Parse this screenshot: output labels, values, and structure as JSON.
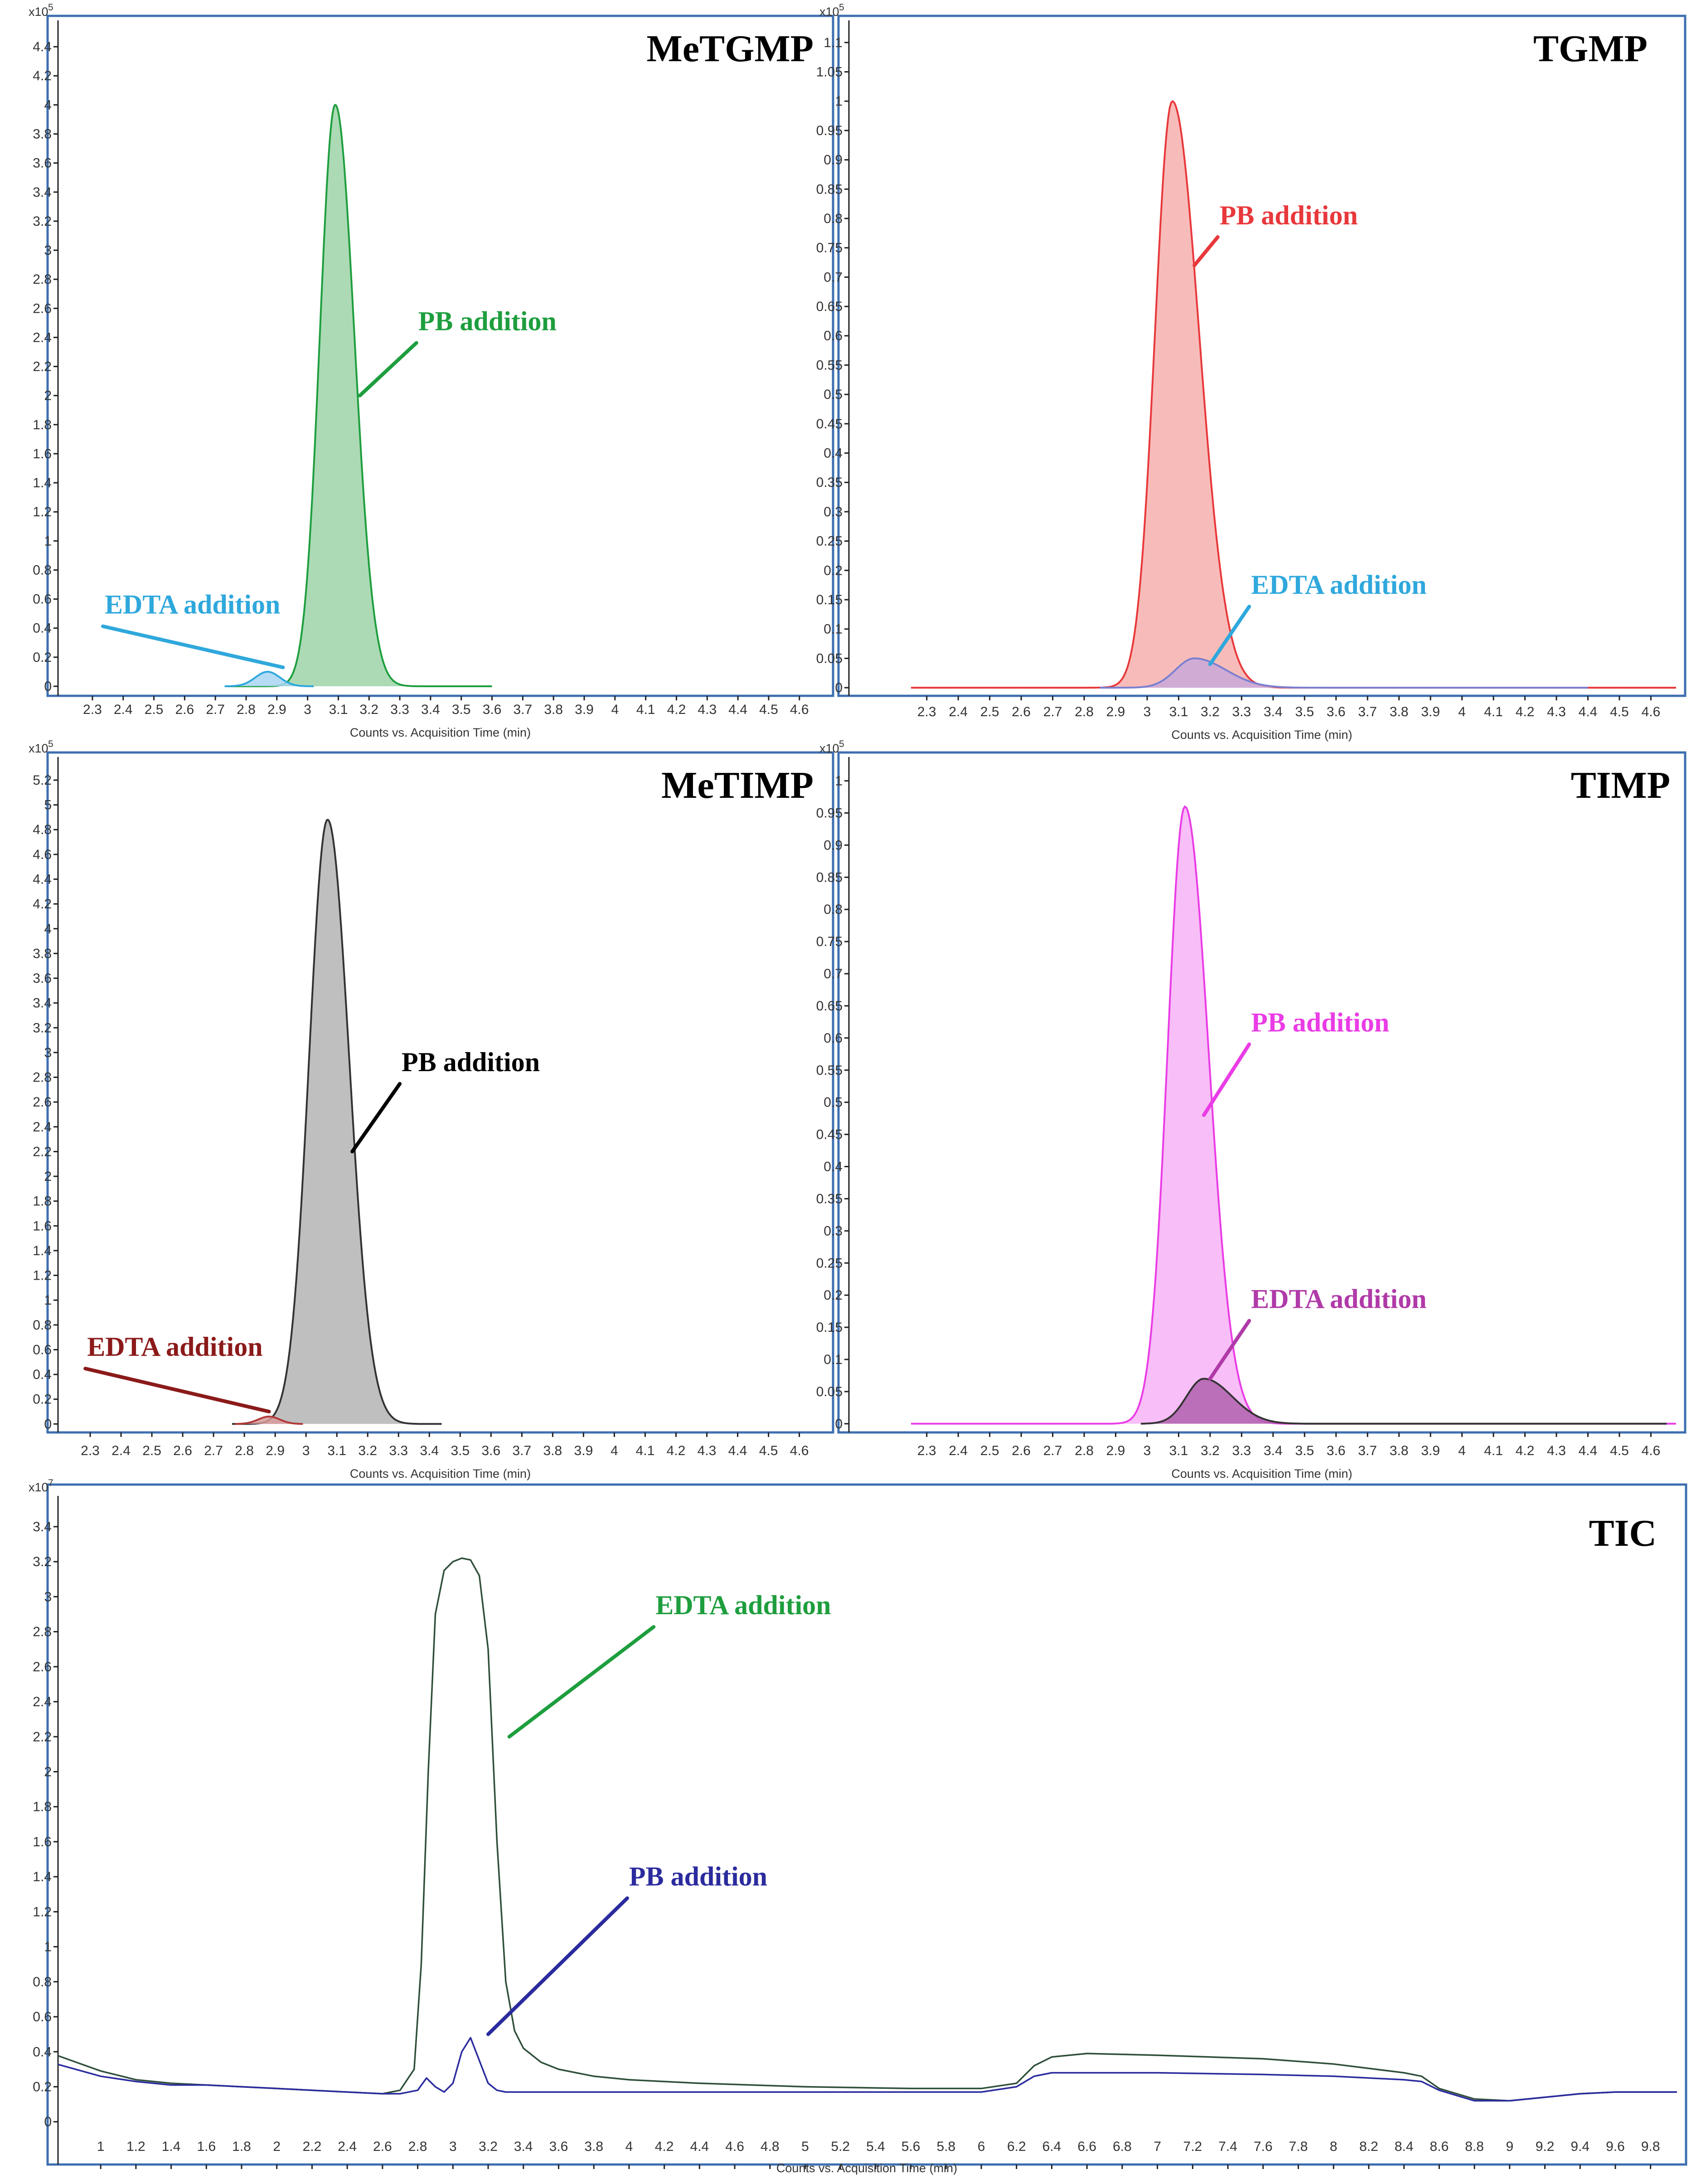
{
  "figure": {
    "xlabel": "Counts vs. Acquisition Time (min)",
    "colors": {
      "frame": "#3d6fb0",
      "axis": "#222222",
      "tick_text": "#333333",
      "title_text": "#000000"
    }
  },
  "chart_data": [
    {
      "id": "metgmp",
      "type": "area",
      "title": "MeTGMP",
      "xlabel": "Counts vs. Acquisition Time (min)",
      "exponent_base": "x10",
      "exponent": "5",
      "xlim": [
        2.25,
        4.68
      ],
      "ylim": [
        -0.05,
        4.55
      ],
      "x_ticks": [
        2.3,
        2.4,
        2.5,
        2.6,
        2.7,
        2.8,
        2.9,
        3,
        3.1,
        3.2,
        3.3,
        3.4,
        3.5,
        3.6,
        3.7,
        3.8,
        3.9,
        4,
        4.1,
        4.2,
        4.3,
        4.4,
        4.5,
        4.6
      ],
      "x_tick_labels": [
        "2.3",
        "2.4",
        "2.5",
        "2.6",
        "2.7",
        "2.8",
        "2.9",
        "3",
        "3.1",
        "3.2",
        "3.3",
        "3.4",
        "3.5",
        "3.6",
        "3.7",
        "3.8",
        "3.9",
        "4",
        "4.1",
        "4.2",
        "4.3",
        "4.4",
        "4.5",
        "4.6"
      ],
      "y_ticks": [
        0,
        0.2,
        0.4,
        0.6,
        0.8,
        1,
        1.2,
        1.4,
        1.6,
        1.8,
        2,
        2.2,
        2.4,
        2.6,
        2.8,
        3,
        3.2,
        3.4,
        3.6,
        3.8,
        4,
        4.2,
        4.4
      ],
      "y_tick_labels": [
        "0",
        "0.2",
        "0.4",
        "0.6",
        "0.8",
        "1",
        "1.2",
        "1.4",
        "1.6",
        "1.8",
        "2",
        "2.2",
        "2.4",
        "2.6",
        "2.8",
        "3",
        "3.2",
        "3.4",
        "3.6",
        "3.8",
        "4",
        "4.2",
        "4.4"
      ],
      "series": [
        {
          "name": "PB addition",
          "label": "PB addition",
          "color": "#1e9e3e",
          "fill": "#9ed4a8",
          "x_range": [
            2.73,
            3.6
          ],
          "peak_x": 3.09,
          "peak_y": 4.0,
          "sigma_left": 0.05,
          "sigma_right": 0.062,
          "baseline": 0.0
        },
        {
          "name": "EDTA addition",
          "label": "EDTA addition",
          "color": "#2fa8dc",
          "fill": "#a8d6f2",
          "x_range": [
            2.73,
            3.02
          ],
          "peak_x": 2.87,
          "peak_y": 0.1,
          "sigma_left": 0.04,
          "sigma_right": 0.04,
          "baseline": 0.0
        }
      ],
      "annotations": [
        {
          "text": "PB addition",
          "series": "PB addition",
          "color": "#1e9e3e",
          "label_at": [
            3.36,
            2.45
          ],
          "arrow_to": [
            3.17,
            2.0
          ]
        },
        {
          "text": "EDTA addition",
          "series": "EDTA addition",
          "color": "#2fa8dc",
          "label_at": [
            2.34,
            0.5
          ],
          "arrow_to": [
            2.92,
            0.13
          ]
        }
      ]
    },
    {
      "id": "tgmp",
      "type": "area",
      "title": "TGMP",
      "xlabel": "Counts vs. Acquisition Time (min)",
      "exponent_base": "x10",
      "exponent": "5",
      "xlim": [
        2.25,
        4.68
      ],
      "ylim": [
        -0.01,
        1.13
      ],
      "x_ticks": [
        2.3,
        2.4,
        2.5,
        2.6,
        2.7,
        2.8,
        2.9,
        3,
        3.1,
        3.2,
        3.3,
        3.4,
        3.5,
        3.6,
        3.7,
        3.8,
        3.9,
        4,
        4.1,
        4.2,
        4.3,
        4.4,
        4.5,
        4.6
      ],
      "x_tick_labels": [
        "2.3",
        "2.4",
        "2.5",
        "2.6",
        "2.7",
        "2.8",
        "2.9",
        "3",
        "3.1",
        "3.2",
        "3.3",
        "3.4",
        "3.5",
        "3.6",
        "3.7",
        "3.8",
        "3.9",
        "4",
        "4.1",
        "4.2",
        "4.3",
        "4.4",
        "4.5",
        "4.6"
      ],
      "y_ticks": [
        0,
        0.05,
        0.1,
        0.15,
        0.2,
        0.25,
        0.3,
        0.35,
        0.4,
        0.45,
        0.5,
        0.55,
        0.6,
        0.65,
        0.7,
        0.75,
        0.8,
        0.85,
        0.9,
        0.95,
        1,
        1.05,
        1.1
      ],
      "y_tick_labels": [
        "0",
        "0.05",
        "0.1",
        "0.15",
        "0.2",
        "0.25",
        "0.3",
        "0.35",
        "0.4",
        "0.45",
        "0.5",
        "0.55",
        "0.6",
        "0.65",
        "0.7",
        "0.75",
        "0.8",
        "0.85",
        "0.9",
        "0.95",
        "1",
        "1.05",
        "1.1"
      ],
      "series": [
        {
          "name": "PB addition",
          "label": "PB addition",
          "color": "#e8383b",
          "fill": "#f6b0ae",
          "x_range": [
            2.25,
            4.68
          ],
          "peak_x": 3.08,
          "peak_y": 1.0,
          "sigma_left": 0.055,
          "sigma_right": 0.085,
          "baseline": 0.0
        },
        {
          "name": "EDTA addition",
          "label": "EDTA addition",
          "color": "#7a7fd0",
          "fill": "#c9a9d9",
          "x_range": [
            2.85,
            4.4
          ],
          "peak_x": 3.15,
          "peak_y": 0.05,
          "sigma_left": 0.06,
          "sigma_right": 0.1,
          "baseline": 0.0
        }
      ],
      "annotations": [
        {
          "text": "PB addition",
          "series": "PB addition",
          "color": "#e8383b",
          "label_at": [
            3.23,
            0.79
          ],
          "arrow_to": [
            3.15,
            0.72
          ]
        },
        {
          "text": "EDTA addition",
          "series": "EDTA addition",
          "color": "#2fa8dc",
          "label_at": [
            3.33,
            0.16
          ],
          "arrow_to": [
            3.2,
            0.04
          ]
        }
      ]
    },
    {
      "id": "metimp",
      "type": "area",
      "title": "MeTIMP",
      "xlabel": "Counts vs. Acquisition Time (min)",
      "exponent_base": "x10",
      "exponent": "5",
      "xlim": [
        2.25,
        4.68
      ],
      "ylim": [
        -0.05,
        5.35
      ],
      "x_ticks": [
        2.3,
        2.4,
        2.5,
        2.6,
        2.7,
        2.8,
        2.9,
        3,
        3.1,
        3.2,
        3.3,
        3.4,
        3.5,
        3.6,
        3.7,
        3.8,
        3.9,
        4,
        4.1,
        4.2,
        4.3,
        4.4,
        4.5,
        4.6
      ],
      "x_tick_labels": [
        "2.3",
        "2.4",
        "2.5",
        "2.6",
        "2.7",
        "2.8",
        "2.9",
        "3",
        "3.1",
        "3.2",
        "3.3",
        "3.4",
        "3.5",
        "3.6",
        "3.7",
        "3.8",
        "3.9",
        "4",
        "4.1",
        "4.2",
        "4.3",
        "4.4",
        "4.5",
        "4.6"
      ],
      "y_ticks": [
        0,
        0.2,
        0.4,
        0.6,
        0.8,
        1,
        1.2,
        1.4,
        1.6,
        1.8,
        2,
        2.2,
        2.4,
        2.6,
        2.8,
        3,
        3.2,
        3.4,
        3.6,
        3.8,
        4,
        4.2,
        4.4,
        4.6,
        4.8,
        5,
        5.2
      ],
      "y_tick_labels": [
        "0",
        "0.2",
        "0.4",
        "0.6",
        "0.8",
        "1",
        "1.2",
        "1.4",
        "1.6",
        "1.8",
        "2",
        "2.2",
        "2.4",
        "2.6",
        "2.8",
        "3",
        "3.2",
        "3.4",
        "3.6",
        "3.8",
        "4",
        "4.2",
        "4.4",
        "4.6",
        "4.8",
        "5",
        "5.2"
      ],
      "series": [
        {
          "name": "PB addition",
          "label": "PB addition",
          "color": "#333333",
          "fill": "#b4b4b4",
          "x_range": [
            2.76,
            3.44
          ],
          "peak_x": 3.07,
          "peak_y": 4.88,
          "sigma_left": 0.06,
          "sigma_right": 0.07,
          "baseline": 0.0
        },
        {
          "name": "EDTA addition",
          "label": "EDTA addition",
          "color": "#b23a3a",
          "fill": "#d79a9a",
          "x_range": [
            2.77,
            2.99
          ],
          "peak_x": 2.88,
          "peak_y": 0.06,
          "sigma_left": 0.035,
          "sigma_right": 0.035,
          "baseline": 0.0
        }
      ],
      "annotations": [
        {
          "text": "PB addition",
          "series": "PB addition",
          "color": "#000000",
          "label_at": [
            3.31,
            2.85
          ],
          "arrow_to": [
            3.15,
            2.2
          ]
        },
        {
          "text": "EDTA addition",
          "series": "EDTA addition",
          "color": "#8b1a1a",
          "label_at": [
            2.29,
            0.55
          ],
          "arrow_to": [
            2.88,
            0.1
          ]
        }
      ]
    },
    {
      "id": "timp",
      "type": "area",
      "title": "TIMP",
      "xlabel": "Counts vs. Acquisition Time (min)",
      "exponent_base": "x10",
      "exponent": "5",
      "xlim": [
        2.25,
        4.68
      ],
      "ylim": [
        -0.01,
        1.03
      ],
      "x_ticks": [
        2.3,
        2.4,
        2.5,
        2.6,
        2.7,
        2.8,
        2.9,
        3,
        3.1,
        3.2,
        3.3,
        3.4,
        3.5,
        3.6,
        3.7,
        3.8,
        3.9,
        4,
        4.1,
        4.2,
        4.3,
        4.4,
        4.5,
        4.6
      ],
      "x_tick_labels": [
        "2.3",
        "2.4",
        "2.5",
        "2.6",
        "2.7",
        "2.8",
        "2.9",
        "3",
        "3.1",
        "3.2",
        "3.3",
        "3.4",
        "3.5",
        "3.6",
        "3.7",
        "3.8",
        "3.9",
        "4",
        "4.1",
        "4.2",
        "4.3",
        "4.4",
        "4.5",
        "4.6"
      ],
      "y_ticks": [
        0,
        0.05,
        0.1,
        0.15,
        0.2,
        0.25,
        0.3,
        0.35,
        0.4,
        0.45,
        0.5,
        0.55,
        0.6,
        0.65,
        0.7,
        0.75,
        0.8,
        0.85,
        0.9,
        0.95,
        1
      ],
      "y_tick_labels": [
        "0",
        "0.05",
        "0.1",
        "0.15",
        "0.2",
        "0.25",
        "0.3",
        "0.35",
        "0.4",
        "0.45",
        "0.5",
        "0.55",
        "0.6",
        "0.65",
        "0.7",
        "0.75",
        "0.8",
        "0.85",
        "0.9",
        "0.95",
        "1"
      ],
      "series": [
        {
          "name": "PB addition",
          "label": "PB addition",
          "color": "#ea3ce6",
          "fill": "#f7b3f6",
          "x_range": [
            2.25,
            4.68
          ],
          "peak_x": 3.12,
          "peak_y": 0.96,
          "sigma_left": 0.055,
          "sigma_right": 0.075,
          "baseline": 0.0
        },
        {
          "name": "EDTA addition",
          "label": "EDTA addition",
          "color": "#333333",
          "fill": "#b061ae",
          "x_range": [
            2.98,
            4.65
          ],
          "peak_x": 3.18,
          "peak_y": 0.07,
          "sigma_left": 0.055,
          "sigma_right": 0.09,
          "baseline": 0.0
        }
      ],
      "annotations": [
        {
          "text": "PB addition",
          "series": "PB addition",
          "color": "#ea3ce6",
          "label_at": [
            3.33,
            0.61
          ],
          "arrow_to": [
            3.18,
            0.48
          ]
        },
        {
          "text": "EDTA addition",
          "series": "EDTA addition",
          "color": "#b03aa8",
          "label_at": [
            3.33,
            0.18
          ],
          "arrow_to": [
            3.2,
            0.07
          ]
        }
      ]
    },
    {
      "id": "tic",
      "type": "line",
      "title": "TIC",
      "xlabel": "Counts vs. Acquisition Time (min)",
      "exponent_base": "x10",
      "exponent": "7",
      "xlim": [
        0.75,
        9.95
      ],
      "ylim": [
        -0.05,
        3.55
      ],
      "x_ticks": [
        1,
        1.2,
        1.4,
        1.6,
        1.8,
        2,
        2.2,
        2.4,
        2.6,
        2.8,
        3,
        3.2,
        3.4,
        3.6,
        3.8,
        4,
        4.2,
        4.4,
        4.6,
        4.8,
        5,
        5.2,
        5.4,
        5.6,
        5.8,
        6,
        6.2,
        6.4,
        6.6,
        6.8,
        7,
        7.2,
        7.4,
        7.6,
        7.8,
        8,
        8.2,
        8.4,
        8.6,
        8.8,
        9,
        9.2,
        9.4,
        9.6,
        9.8
      ],
      "x_tick_labels": [
        "1",
        "1.2",
        "1.4",
        "1.6",
        "1.8",
        "2",
        "2.2",
        "2.4",
        "2.6",
        "2.8",
        "3",
        "3.2",
        "3.4",
        "3.6",
        "3.8",
        "4",
        "4.2",
        "4.4",
        "4.6",
        "4.8",
        "5",
        "5.2",
        "5.4",
        "5.6",
        "5.8",
        "6",
        "6.2",
        "6.4",
        "6.6",
        "6.8",
        "7",
        "7.2",
        "7.4",
        "7.6",
        "7.8",
        "8",
        "8.2",
        "8.4",
        "8.6",
        "8.8",
        "9",
        "9.2",
        "9.4",
        "9.6",
        "9.8"
      ],
      "y_ticks": [
        0,
        0.2,
        0.4,
        0.6,
        0.8,
        1,
        1.2,
        1.4,
        1.6,
        1.8,
        2,
        2.2,
        2.4,
        2.6,
        2.8,
        3,
        3.2,
        3.4
      ],
      "y_tick_labels": [
        "0",
        "0.2",
        "0.4",
        "0.6",
        "0.8",
        "1",
        "1.2",
        "1.4",
        "1.6",
        "1.8",
        "2",
        "2.2",
        "2.4",
        "2.6",
        "2.8",
        "3",
        "3.2",
        "3.4"
      ],
      "series": [
        {
          "name": "EDTA addition",
          "label": "EDTA addition",
          "color": "#2f4f3a",
          "x": [
            0.75,
            1.0,
            1.2,
            1.4,
            1.6,
            1.8,
            2.0,
            2.2,
            2.4,
            2.6,
            2.7,
            2.78,
            2.82,
            2.86,
            2.9,
            2.95,
            3.0,
            3.05,
            3.1,
            3.15,
            3.2,
            3.25,
            3.3,
            3.35,
            3.4,
            3.5,
            3.6,
            3.8,
            4.0,
            4.4,
            5.0,
            5.6,
            6.0,
            6.2,
            6.3,
            6.4,
            6.6,
            7.0,
            7.6,
            8.0,
            8.4,
            8.5,
            8.6,
            8.8,
            9.0,
            9.2,
            9.4,
            9.6,
            9.95
          ],
          "values": [
            0.38,
            0.29,
            0.24,
            0.22,
            0.21,
            0.2,
            0.19,
            0.18,
            0.17,
            0.16,
            0.18,
            0.3,
            0.9,
            2.0,
            2.9,
            3.15,
            3.2,
            3.22,
            3.21,
            3.12,
            2.7,
            1.6,
            0.8,
            0.52,
            0.42,
            0.34,
            0.3,
            0.26,
            0.24,
            0.22,
            0.2,
            0.19,
            0.19,
            0.22,
            0.32,
            0.37,
            0.39,
            0.38,
            0.36,
            0.33,
            0.28,
            0.26,
            0.19,
            0.13,
            0.12,
            0.14,
            0.16,
            0.17,
            0.17
          ]
        },
        {
          "name": "PB addition",
          "label": "PB addition",
          "color": "#2b2b9e",
          "x": [
            0.75,
            1.0,
            1.2,
            1.4,
            1.6,
            1.8,
            2.0,
            2.2,
            2.4,
            2.6,
            2.7,
            2.8,
            2.85,
            2.9,
            2.95,
            3.0,
            3.05,
            3.1,
            3.15,
            3.2,
            3.25,
            3.3,
            3.4,
            3.6,
            4.0,
            4.5,
            5.0,
            5.6,
            6.0,
            6.2,
            6.3,
            6.4,
            6.6,
            7.0,
            7.6,
            8.0,
            8.4,
            8.5,
            8.6,
            8.8,
            9.0,
            9.2,
            9.4,
            9.6,
            9.95
          ],
          "values": [
            0.33,
            0.26,
            0.23,
            0.21,
            0.21,
            0.2,
            0.19,
            0.18,
            0.17,
            0.16,
            0.16,
            0.18,
            0.25,
            0.2,
            0.17,
            0.22,
            0.4,
            0.48,
            0.35,
            0.22,
            0.18,
            0.17,
            0.17,
            0.17,
            0.17,
            0.17,
            0.17,
            0.17,
            0.17,
            0.2,
            0.26,
            0.28,
            0.28,
            0.28,
            0.27,
            0.26,
            0.24,
            0.23,
            0.18,
            0.12,
            0.12,
            0.14,
            0.16,
            0.17,
            0.17
          ]
        }
      ],
      "annotations": [
        {
          "text": "EDTA addition",
          "series": "EDTA addition",
          "color": "#1e9e3e",
          "label_at": [
            4.15,
            2.9
          ],
          "arrow_to": [
            3.32,
            2.2
          ]
        },
        {
          "text": "PB addition",
          "series": "PB addition",
          "color": "#2b2b9e",
          "label_at": [
            4.0,
            1.35
          ],
          "arrow_to": [
            3.2,
            0.5
          ]
        }
      ]
    }
  ]
}
